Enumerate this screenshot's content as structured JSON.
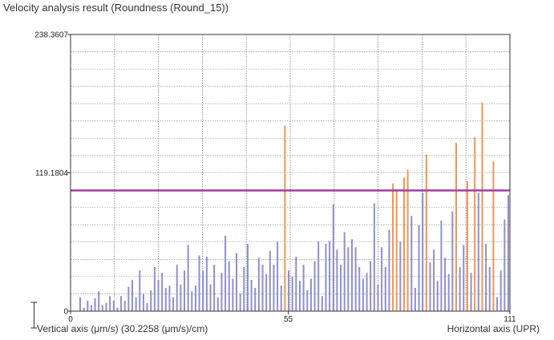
{
  "chart_data": {
    "type": "bar",
    "title": "Velocity analysis result (Roundness (Round_15))",
    "xlabel": "Horizontal axis (UPR)",
    "ylabel": "Vertical axis (μm/s) (30.2258 (μm/s)/cm)",
    "xlim": [
      0,
      111
    ],
    "ylim": [
      0,
      238.3607
    ],
    "y_tick_labels": [
      "238.3607",
      "119.1804",
      "0"
    ],
    "x_tick_labels": [
      "0",
      "55",
      "111"
    ],
    "x_ticks": [
      0,
      55,
      111
    ],
    "y_ticks": [
      238.3607,
      119.1804,
      0
    ],
    "grid": true,
    "threshold_line": {
      "value": 104,
      "color": "#a03fa0"
    },
    "colors": {
      "normal": "#8f8fd0",
      "exceed": "#f29552",
      "grid": "#7a7a7a"
    },
    "series": [
      {
        "values": [
          12,
          3,
          9,
          5,
          11,
          17,
          5,
          7,
          13,
          9,
          3,
          13,
          9,
          21,
          27,
          12,
          35,
          15,
          7,
          18,
          38,
          27,
          33,
          20,
          22,
          12,
          40,
          23,
          35,
          57,
          17,
          22,
          48,
          35,
          47,
          23,
          40,
          12,
          33,
          65,
          43,
          28,
          50,
          15,
          38,
          58,
          27,
          20,
          46,
          40,
          32,
          52,
          40,
          60,
          22,
          160,
          35,
          30,
          47,
          26,
          40,
          18,
          28,
          43,
          60,
          13,
          58,
          60,
          92,
          53,
          40,
          68,
          55,
          62,
          55,
          38,
          28,
          33,
          43,
          93,
          23,
          55,
          38,
          70,
          110,
          105,
          60,
          115,
          122,
          82,
          20,
          74,
          102,
          135,
          42,
          53,
          26,
          78,
          46,
          32,
          86,
          145,
          38,
          57,
          112,
          33,
          150,
          102,
          180,
          58,
          38,
          129,
          12,
          35,
          79,
          100
        ]
      }
    ]
  }
}
